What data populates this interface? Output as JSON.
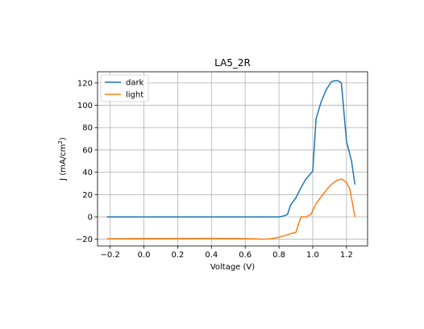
{
  "chart_data": {
    "type": "line",
    "title": "LA5_2R",
    "xlabel": "Voltage (V)",
    "ylabel_main": "J (mA/cm",
    "ylabel_sup": "2",
    "ylabel_close": ")",
    "xlim": [
      -0.275,
      1.325
    ],
    "ylim": [
      -26,
      130
    ],
    "xticks": [
      -0.2,
      0.0,
      0.2,
      0.4,
      0.6,
      0.8,
      1.0,
      1.2
    ],
    "xtick_labels": [
      "−0.2",
      "0.0",
      "0.2",
      "0.4",
      "0.6",
      "0.8",
      "1.0",
      "1.2"
    ],
    "yticks": [
      -20,
      0,
      20,
      40,
      60,
      80,
      100,
      120
    ],
    "ytick_labels": [
      "−20",
      "0",
      "20",
      "40",
      "60",
      "80",
      "100",
      "120"
    ],
    "grid": true,
    "legend_position": "top-left",
    "series": [
      {
        "name": "dark",
        "color": "#1f77b4",
        "x": [
          -0.22,
          -0.1,
          0.0,
          0.2,
          0.4,
          0.6,
          0.7,
          0.8,
          0.82,
          0.85,
          0.87,
          0.9,
          0.93,
          0.96,
          1.0,
          1.02,
          1.05,
          1.08,
          1.11,
          1.13,
          1.15,
          1.17,
          1.2,
          1.23,
          1.25
        ],
        "y": [
          0,
          0,
          0,
          0,
          0,
          0,
          0,
          0,
          0.6,
          2,
          11,
          17,
          26,
          34,
          41,
          88,
          103,
          114,
          121,
          122,
          122,
          120,
          68,
          50,
          29
        ]
      },
      {
        "name": "light",
        "color": "#ff7f0e",
        "x": [
          -0.22,
          -0.1,
          0.0,
          0.2,
          0.4,
          0.55,
          0.65,
          0.7,
          0.75,
          0.8,
          0.85,
          0.88,
          0.9,
          0.93,
          0.96,
          0.99,
          1.02,
          1.05,
          1.08,
          1.11,
          1.14,
          1.17,
          1.2,
          1.22,
          1.25
        ],
        "y": [
          -19.5,
          -19.4,
          -19.3,
          -19.3,
          -19.2,
          -19.3,
          -19.6,
          -19.9,
          -19.6,
          -18.2,
          -16,
          -14.5,
          -14,
          0,
          0,
          2.5,
          12,
          18,
          24,
          29,
          32.5,
          34,
          31,
          25,
          0
        ]
      }
    ]
  }
}
